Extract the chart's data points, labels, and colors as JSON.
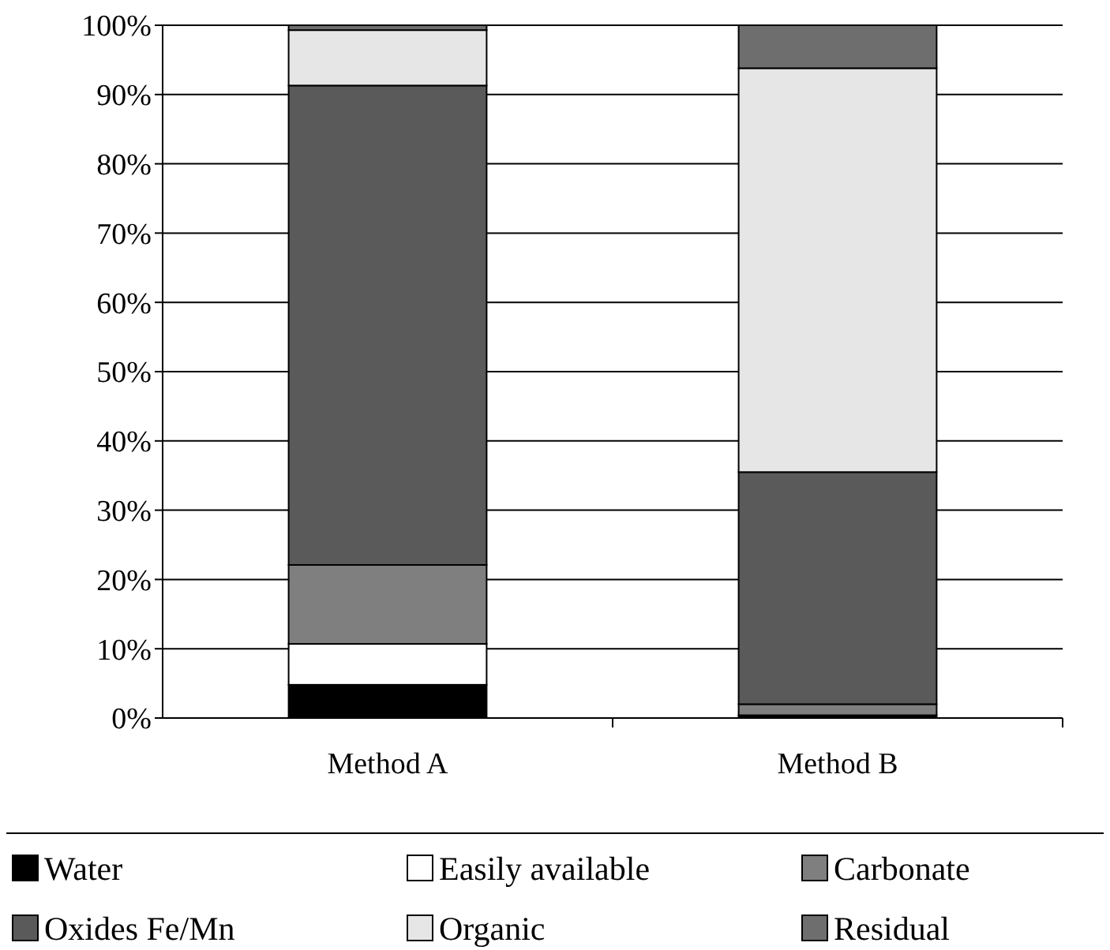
{
  "chart_data": {
    "type": "bar",
    "stacked": true,
    "categories": [
      "Method A",
      "Method B"
    ],
    "series": [
      {
        "name": "Water",
        "color": "#000000",
        "values": [
          4.8,
          0.4
        ]
      },
      {
        "name": "Easily available",
        "color": "#ffffff",
        "values": [
          5.9,
          0
        ]
      },
      {
        "name": "Carbonate",
        "color": "#7f7f7f",
        "values": [
          11.4,
          1.6
        ]
      },
      {
        "name": "Oxides Fe/Mn",
        "color": "#5a5a5a",
        "values": [
          69.2,
          33.5
        ]
      },
      {
        "name": "Organic",
        "color": "#e6e6e6",
        "values": [
          8,
          58.3
        ]
      },
      {
        "name": "Residual",
        "color": "#6e6e6e",
        "values": [
          0.7,
          6.2
        ]
      }
    ],
    "ylim": [
      0,
      100
    ],
    "yticks": [
      {
        "value": 0,
        "label": "0%"
      },
      {
        "value": 10,
        "label": "10%"
      },
      {
        "value": 20,
        "label": "20%"
      },
      {
        "value": 30,
        "label": "30%"
      },
      {
        "value": 40,
        "label": "40%"
      },
      {
        "value": 50,
        "label": "50%"
      },
      {
        "value": 60,
        "label": "60%"
      },
      {
        "value": 70,
        "label": "70%"
      },
      {
        "value": 80,
        "label": "80%"
      },
      {
        "value": 90,
        "label": "90%"
      },
      {
        "value": 100,
        "label": "100%"
      }
    ],
    "grid": "y",
    "legend": "bottom"
  }
}
